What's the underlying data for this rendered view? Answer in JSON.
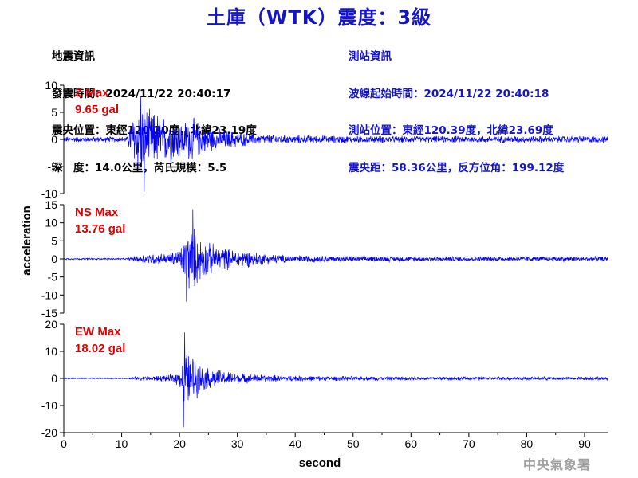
{
  "title": "土庫（WTK）震度：3級",
  "quake_info": {
    "heading": "地震資訊",
    "origin_time": "發震時間：2024/11/22 20:40:17",
    "epicenter": "震央位置：東經120.20度，北緯23.19度",
    "depth_magnitude": "深　度：14.0公里，芮氏規模：5.5"
  },
  "station_info": {
    "heading": "測站資訊",
    "wave_start": "波線起始時間：2024/11/22 20:40:18",
    "station_location": "測站位置：東經120.39度，北緯23.69度",
    "distance_azimuth": "震央距：58.36公里，反方位角：199.12度"
  },
  "agency": "中央氣象署",
  "colors": {
    "trace": "#0000ff",
    "title": "#1414c8",
    "max_label": "#e00000",
    "axis": "#000000"
  },
  "chart_data": {
    "type": "line",
    "xlabel": "second",
    "ylabel": "acceleration",
    "xlim": [
      0,
      94
    ],
    "xticks": [
      0,
      10,
      20,
      30,
      40,
      50,
      60,
      70,
      80,
      90
    ],
    "grid": false,
    "legend": "none",
    "panels": [
      {
        "name": "Z Max",
        "max_value": "9.65 gal",
        "ylim": [
          -10,
          10
        ],
        "yticks": [
          10,
          5,
          0,
          -5,
          -10
        ],
        "envelope": [
          [
            0,
            0.6
          ],
          [
            11,
            0.6
          ],
          [
            11.5,
            3.5
          ],
          [
            12.5,
            6.5
          ],
          [
            13.3,
            8.0
          ],
          [
            14,
            7.5
          ],
          [
            15,
            5.5
          ],
          [
            16,
            6.0
          ],
          [
            17,
            5.0
          ],
          [
            19,
            4.5
          ],
          [
            21,
            4.0
          ],
          [
            22,
            4.8
          ],
          [
            24,
            3.0
          ],
          [
            26,
            2.3
          ],
          [
            28,
            2.0
          ],
          [
            30,
            1.6
          ],
          [
            33,
            1.2
          ],
          [
            36,
            1.0
          ],
          [
            40,
            0.9
          ],
          [
            45,
            0.8
          ],
          [
            50,
            0.75
          ],
          [
            60,
            0.7
          ],
          [
            70,
            0.7
          ],
          [
            80,
            0.7
          ],
          [
            94,
            0.75
          ]
        ],
        "extremes": [
          {
            "t": 13.3,
            "v": 8.0
          },
          {
            "t": 13.9,
            "v": -9.65
          }
        ]
      },
      {
        "name": "NS Max",
        "max_value": "13.76 gal",
        "ylim": [
          -15,
          15
        ],
        "yticks": [
          15,
          10,
          5,
          0,
          -5,
          -10,
          -15
        ],
        "envelope": [
          [
            0,
            0.25
          ],
          [
            11,
            0.25
          ],
          [
            12,
            0.8
          ],
          [
            14,
            1.5
          ],
          [
            16,
            1.8
          ],
          [
            18,
            1.8
          ],
          [
            20,
            3.0
          ],
          [
            21,
            7.0
          ],
          [
            21.8,
            11.0
          ],
          [
            22.5,
            9.5
          ],
          [
            23.5,
            7.0
          ],
          [
            25,
            5.0
          ],
          [
            27,
            4.0
          ],
          [
            29,
            3.0
          ],
          [
            31,
            2.8
          ],
          [
            33,
            2.2
          ],
          [
            36,
            1.5
          ],
          [
            40,
            1.2
          ],
          [
            45,
            1.0
          ],
          [
            50,
            0.9
          ],
          [
            60,
            0.8
          ],
          [
            70,
            0.8
          ],
          [
            80,
            0.8
          ],
          [
            94,
            0.8
          ]
        ],
        "extremes": [
          {
            "t": 22.3,
            "v": 13.76
          },
          {
            "t": 21.2,
            "v": -11.9
          }
        ]
      },
      {
        "name": "EW Max",
        "max_value": "18.02 gal",
        "ylim": [
          -20,
          20
        ],
        "yticks": [
          20,
          10,
          0,
          -10,
          -20
        ],
        "envelope": [
          [
            0,
            0.2
          ],
          [
            11,
            0.2
          ],
          [
            12,
            0.6
          ],
          [
            14,
            1.0
          ],
          [
            16,
            1.2
          ],
          [
            18,
            1.4
          ],
          [
            20,
            3.0
          ],
          [
            20.8,
            12.0
          ],
          [
            21.5,
            11.0
          ],
          [
            22.5,
            9.0
          ],
          [
            24,
            5.0
          ],
          [
            26,
            4.0
          ],
          [
            28,
            3.0
          ],
          [
            31,
            2.0
          ],
          [
            35,
            1.5
          ],
          [
            40,
            1.2
          ],
          [
            45,
            1.0
          ],
          [
            50,
            0.9
          ],
          [
            60,
            0.8
          ],
          [
            70,
            0.8
          ],
          [
            80,
            0.7
          ],
          [
            94,
            0.7
          ]
        ],
        "extremes": [
          {
            "t": 20.9,
            "v": 17.0
          },
          {
            "t": 20.7,
            "v": -18.02
          }
        ]
      }
    ]
  }
}
